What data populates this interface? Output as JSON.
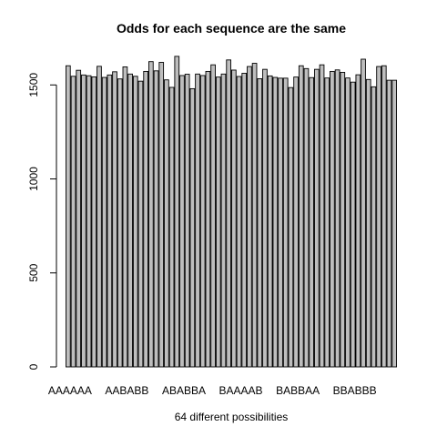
{
  "chart_data": {
    "type": "bar",
    "title": "Odds for each sequence are the same",
    "xlabel": "64 different possibilities",
    "ylabel": "",
    "ylim": [
      0,
      1700
    ],
    "yticks": [
      0,
      500,
      1000,
      1500
    ],
    "category_labels_shown": [
      "AAAAAA",
      "AABABB",
      "ABABBA",
      "BAAAAB",
      "BABBAA",
      "BBABBB"
    ],
    "label_indices": [
      0,
      11,
      22,
      33,
      44,
      55
    ],
    "values": [
      1602,
      1546,
      1578,
      1553,
      1549,
      1543,
      1599,
      1540,
      1553,
      1570,
      1532,
      1596,
      1558,
      1546,
      1520,
      1572,
      1624,
      1575,
      1620,
      1527,
      1487,
      1652,
      1550,
      1557,
      1480,
      1558,
      1550,
      1572,
      1607,
      1542,
      1558,
      1633,
      1579,
      1545,
      1562,
      1598,
      1615,
      1533,
      1583,
      1548,
      1540,
      1536,
      1536,
      1486,
      1542,
      1602,
      1587,
      1539,
      1583,
      1607,
      1537,
      1572,
      1580,
      1567,
      1537,
      1515,
      1554,
      1637,
      1529,
      1490,
      1598,
      1602,
      1525,
      1525
    ],
    "grid": false,
    "legend": "none"
  }
}
